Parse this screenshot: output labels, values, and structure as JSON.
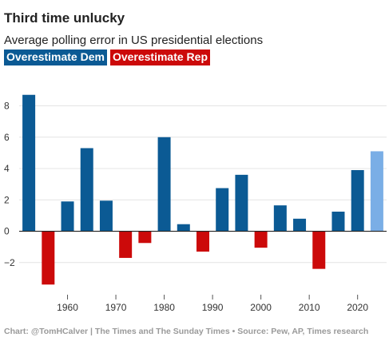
{
  "header": {
    "title": "Third time unlucky",
    "subtitle": "Average polling error in US presidential elections"
  },
  "legend": {
    "items": [
      {
        "label": "Overestimate Dem",
        "color": "#0b5a94"
      },
      {
        "label": "Overestimate Rep",
        "color": "#cc0a0a"
      }
    ]
  },
  "footer": {
    "source": "Chart: @TomHCalver | The Times and The Sunday Times • Source: Pew, AP, Times research"
  },
  "chart_data": {
    "type": "bar",
    "x": [
      1952,
      1956,
      1960,
      1964,
      1968,
      1972,
      1976,
      1980,
      1984,
      1988,
      1992,
      1996,
      2000,
      2004,
      2008,
      2012,
      2016,
      2020,
      2024
    ],
    "values": [
      8.7,
      -3.4,
      1.9,
      5.3,
      1.95,
      -1.7,
      -0.75,
      6.0,
      0.45,
      -1.3,
      2.75,
      3.6,
      -1.05,
      1.65,
      0.8,
      -2.4,
      1.25,
      3.9,
      5.1
    ],
    "colors": {
      "dem": "#0b5a94",
      "rep": "#cc0a0a",
      "current": "#7aaee6"
    },
    "highlight_last": true,
    "ylim": [
      -4.2,
      9.4
    ],
    "yticks": [
      -2,
      0,
      2,
      4,
      6,
      8
    ],
    "ytick_labels": [
      "−2",
      "0",
      "2",
      "4",
      "6",
      "8"
    ],
    "xticks": [
      1960,
      1970,
      1980,
      1990,
      2000,
      2010,
      2020
    ],
    "xtick_labels": [
      "1960",
      "1970",
      "1980",
      "1990",
      "2000",
      "2010",
      "2020"
    ],
    "grid": true
  }
}
